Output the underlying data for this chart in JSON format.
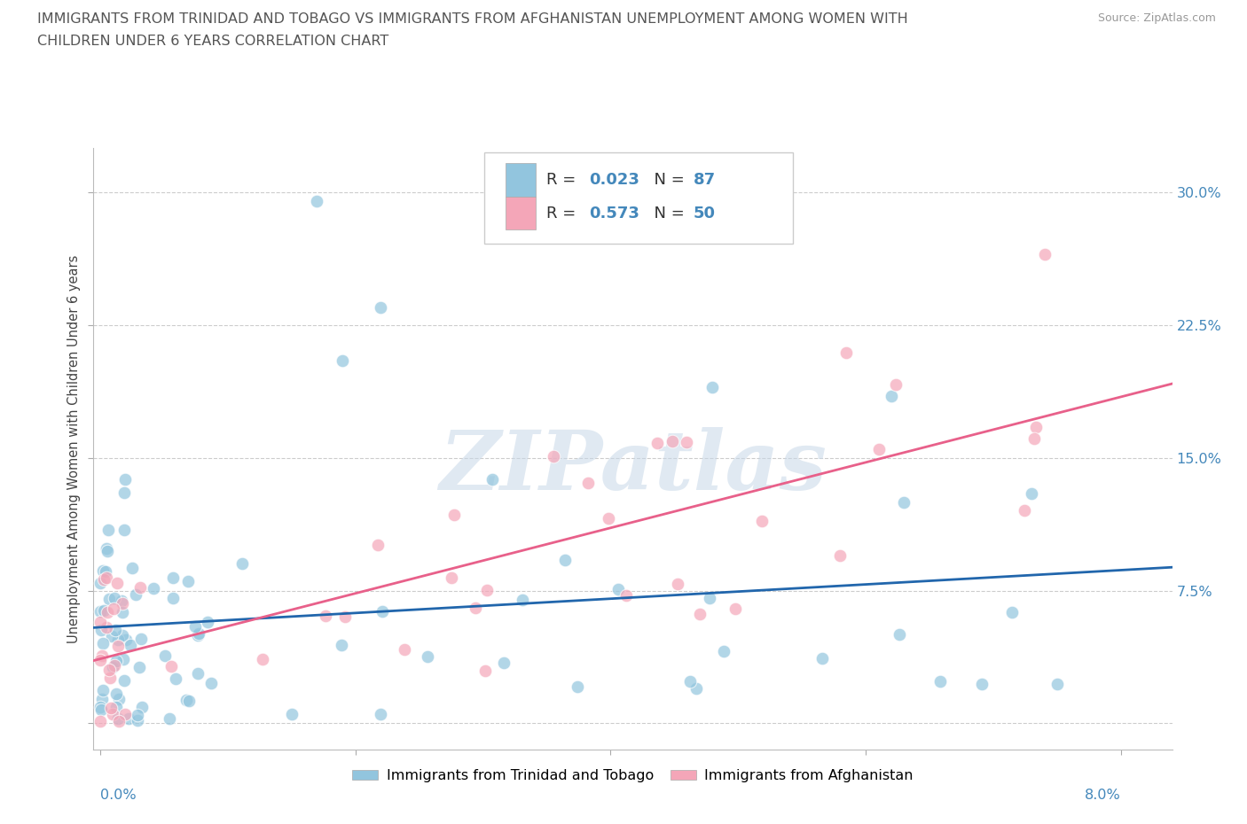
{
  "title_line1": "IMMIGRANTS FROM TRINIDAD AND TOBAGO VS IMMIGRANTS FROM AFGHANISTAN UNEMPLOYMENT AMONG WOMEN WITH",
  "title_line2": "CHILDREN UNDER 6 YEARS CORRELATION CHART",
  "source": "Source: ZipAtlas.com",
  "ylabel": "Unemployment Among Women with Children Under 6 years",
  "r_tt": 0.023,
  "n_tt": 87,
  "r_af": 0.573,
  "n_af": 50,
  "color_tt": "#92c5de",
  "color_af": "#f4a6b8",
  "line_color_tt": "#2166ac",
  "line_color_af": "#e8608a",
  "legend_label_tt": "Immigrants from Trinidad and Tobago",
  "legend_label_af": "Immigrants from Afghanistan",
  "background_color": "#ffffff",
  "title_color": "#555555",
  "title_fontsize": 11.5,
  "axis_label_color": "#4488bb",
  "watermark": "ZIPatlas",
  "xlim_min": -0.0005,
  "xlim_max": 0.084,
  "ylim_min": -0.015,
  "ylim_max": 0.325
}
